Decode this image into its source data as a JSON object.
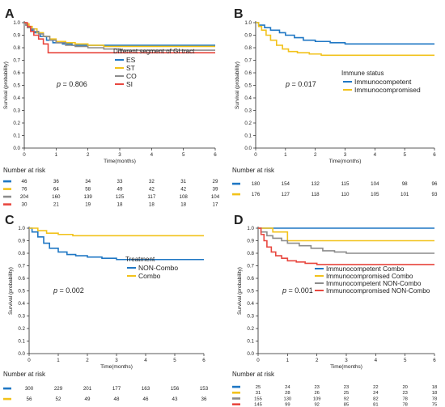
{
  "chart_data": [
    {
      "panel": "A",
      "type": "line",
      "xlabel": "Time(months)",
      "ylabel": "Survival (probability)",
      "xlim": [
        0,
        6
      ],
      "ylim": [
        0,
        1.0
      ],
      "xticks": [
        "0",
        "1",
        "2",
        "3",
        "4",
        "5",
        "6"
      ],
      "yticks": [
        "0.0",
        "0.1",
        "0.2",
        "0.3",
        "0.4",
        "0.5",
        "0.6",
        "0.7",
        "0.8",
        "0.9",
        "1.0"
      ],
      "pvalue_text": "p = 0.806",
      "legend_title": "Different segment of GI tract",
      "series": [
        {
          "name": "ES",
          "color": "#1f77c4",
          "x": [
            0,
            0.05,
            0.1,
            0.2,
            0.3,
            0.5,
            0.7,
            0.9,
            1.2,
            1.5,
            2.0,
            6
          ],
          "y": [
            1.0,
            0.98,
            0.96,
            0.94,
            0.92,
            0.89,
            0.86,
            0.84,
            0.83,
            0.82,
            0.82,
            0.82
          ]
        },
        {
          "name": "ST",
          "color": "#f2c21b",
          "x": [
            0,
            0.05,
            0.15,
            0.25,
            0.4,
            0.6,
            0.8,
            1.0,
            1.3,
            1.6,
            2.0,
            2.5,
            6
          ],
          "y": [
            1.0,
            0.99,
            0.97,
            0.95,
            0.92,
            0.89,
            0.87,
            0.85,
            0.84,
            0.83,
            0.82,
            0.81,
            0.81
          ]
        },
        {
          "name": "CO",
          "color": "#8c8c8c",
          "x": [
            0,
            0.05,
            0.1,
            0.2,
            0.3,
            0.45,
            0.6,
            0.8,
            1.0,
            1.3,
            1.6,
            2.0,
            2.5,
            3.0,
            6
          ],
          "y": [
            1.0,
            0.98,
            0.96,
            0.95,
            0.93,
            0.91,
            0.89,
            0.86,
            0.84,
            0.82,
            0.81,
            0.8,
            0.79,
            0.78,
            0.78
          ]
        },
        {
          "name": "SI",
          "color": "#e8473f",
          "x": [
            0,
            0.1,
            0.2,
            0.3,
            0.45,
            0.6,
            0.75,
            6
          ],
          "y": [
            1.0,
            0.97,
            0.93,
            0.9,
            0.87,
            0.83,
            0.76,
            0.76
          ]
        }
      ],
      "risk": {
        "title": "Number at risk",
        "times": [
          "0",
          "1",
          "2",
          "3",
          "4",
          "5",
          "6"
        ],
        "rows": [
          {
            "color": "#1f77c4",
            "values": [
              "46",
              "36",
              "34",
              "33",
              "32",
              "31",
              "29"
            ]
          },
          {
            "color": "#f2c21b",
            "values": [
              "76",
              "64",
              "58",
              "49",
              "42",
              "42",
              "39"
            ]
          },
          {
            "color": "#8c8c8c",
            "values": [
              "204",
              "160",
              "139",
              "125",
              "117",
              "108",
              "104"
            ]
          },
          {
            "color": "#e8473f",
            "values": [
              "30",
              "21",
              "19",
              "18",
              "18",
              "18",
              "17"
            ]
          }
        ]
      }
    },
    {
      "panel": "B",
      "type": "line",
      "xlabel": "Time(months)",
      "ylabel": "Survival (probability)",
      "xlim": [
        0,
        6
      ],
      "ylim": [
        0,
        1.0
      ],
      "xticks": [
        "0",
        "1",
        "2",
        "3",
        "4",
        "5",
        "6"
      ],
      "yticks": [
        "0.0",
        "0.1",
        "0.2",
        "0.3",
        "0.4",
        "0.5",
        "0.6",
        "0.7",
        "0.8",
        "0.9",
        "1.0"
      ],
      "pvalue_text": "p = 0.017",
      "legend_title": "Immune status",
      "series": [
        {
          "name": "Immunocompetent",
          "color": "#1f77c4",
          "x": [
            0,
            0.1,
            0.3,
            0.5,
            0.8,
            1.0,
            1.3,
            1.6,
            2.0,
            2.5,
            3.0,
            6
          ],
          "y": [
            1.0,
            0.98,
            0.96,
            0.94,
            0.92,
            0.9,
            0.88,
            0.86,
            0.85,
            0.84,
            0.83,
            0.83
          ]
        },
        {
          "name": "Immunocompromised",
          "color": "#f2c21b",
          "x": [
            0,
            0.1,
            0.2,
            0.35,
            0.5,
            0.7,
            0.9,
            1.1,
            1.4,
            1.8,
            2.2,
            6
          ],
          "y": [
            1.0,
            0.97,
            0.94,
            0.9,
            0.86,
            0.82,
            0.79,
            0.77,
            0.76,
            0.75,
            0.74,
            0.74
          ]
        }
      ],
      "risk": {
        "title": "Number at risk",
        "times": [
          "0",
          "1",
          "2",
          "3",
          "4",
          "5",
          "6"
        ],
        "rows": [
          {
            "color": "#1f77c4",
            "values": [
              "180",
              "154",
              "132",
              "115",
              "104",
              "98",
              "96"
            ]
          },
          {
            "color": "#f2c21b",
            "values": [
              "176",
              "127",
              "118",
              "110",
              "105",
              "101",
              "93"
            ]
          }
        ]
      }
    },
    {
      "panel": "C",
      "type": "line",
      "xlabel": "Time(months)",
      "ylabel": "Survival (probability)",
      "xlim": [
        0,
        6
      ],
      "ylim": [
        0,
        1.0
      ],
      "xticks": [
        "0",
        "1",
        "2",
        "3",
        "4",
        "5",
        "6"
      ],
      "yticks": [
        "0.0",
        "0.1",
        "0.2",
        "0.3",
        "0.4",
        "0.5",
        "0.6",
        "0.7",
        "0.8",
        "0.9",
        "1.0"
      ],
      "pvalue_text": "p = 0.002",
      "legend_title": "Treatment",
      "series": [
        {
          "name": "NON-Combo",
          "color": "#1f77c4",
          "x": [
            0,
            0.1,
            0.3,
            0.5,
            0.7,
            1.0,
            1.3,
            1.6,
            2.0,
            2.5,
            3.0,
            6
          ],
          "y": [
            1.0,
            0.97,
            0.93,
            0.88,
            0.84,
            0.81,
            0.79,
            0.78,
            0.77,
            0.76,
            0.75,
            0.75
          ]
        },
        {
          "name": "Combo",
          "color": "#f2c21b",
          "x": [
            0,
            0.3,
            0.6,
            1.0,
            1.5,
            6
          ],
          "y": [
            1.0,
            0.98,
            0.96,
            0.95,
            0.94,
            0.94
          ]
        }
      ],
      "risk": {
        "title": "Number at risk",
        "times": [
          "0",
          "1",
          "2",
          "3",
          "4",
          "5",
          "6"
        ],
        "rows": [
          {
            "color": "#1f77c4",
            "values": [
              "300",
              "229",
              "201",
              "177",
              "163",
              "156",
              "153"
            ]
          },
          {
            "color": "#f2c21b",
            "values": [
              "56",
              "52",
              "49",
              "48",
              "46",
              "43",
              "36"
            ]
          }
        ]
      }
    },
    {
      "panel": "D",
      "type": "line",
      "xlabel": "Time(months)",
      "ylabel": "Survival (probability)",
      "xlim": [
        0,
        6
      ],
      "ylim": [
        0,
        1.0
      ],
      "xticks": [
        "0",
        "1",
        "2",
        "3",
        "4",
        "5",
        "6"
      ],
      "yticks": [
        "0.0",
        "0.1",
        "0.2",
        "0.3",
        "0.4",
        "0.5",
        "0.6",
        "0.7",
        "0.8",
        "0.9",
        "1.0"
      ],
      "pvalue_text": "p = 0.001",
      "legend_title": "",
      "series": [
        {
          "name": "Immunocompetent Combo",
          "color": "#1f77c4",
          "x": [
            0,
            6
          ],
          "y": [
            1.0,
            1.0
          ]
        },
        {
          "name": "Immunocompromised Combo",
          "color": "#f2c21b",
          "x": [
            0,
            0.5,
            1.0,
            6
          ],
          "y": [
            1.0,
            0.97,
            0.9,
            0.9
          ]
        },
        {
          "name": "Immunocompetent NON-Combo",
          "color": "#8c8c8c",
          "x": [
            0,
            0.1,
            0.3,
            0.5,
            0.8,
            1.0,
            1.4,
            1.8,
            2.2,
            2.6,
            3.0,
            6
          ],
          "y": [
            1.0,
            0.97,
            0.94,
            0.92,
            0.9,
            0.88,
            0.86,
            0.84,
            0.82,
            0.81,
            0.8,
            0.8
          ]
        },
        {
          "name": "Immunocompromised NON-Combo",
          "color": "#e8473f",
          "x": [
            0,
            0.1,
            0.2,
            0.3,
            0.45,
            0.6,
            0.8,
            1.0,
            1.3,
            1.6,
            2.0,
            6
          ],
          "y": [
            1.0,
            0.95,
            0.9,
            0.85,
            0.81,
            0.78,
            0.76,
            0.74,
            0.73,
            0.72,
            0.71,
            0.71
          ]
        }
      ],
      "risk": {
        "title": "Number at risk",
        "times": [
          "0",
          "1",
          "2",
          "3",
          "4",
          "5",
          "6"
        ],
        "rows": [
          {
            "color": "#1f77c4",
            "values": [
              "25",
              "24",
              "23",
              "23",
              "22",
              "20",
              "18"
            ]
          },
          {
            "color": "#f2c21b",
            "values": [
              "31",
              "28",
              "26",
              "25",
              "24",
              "23",
              "18"
            ]
          },
          {
            "color": "#8c8c8c",
            "values": [
              "155",
              "130",
              "109",
              "92",
              "82",
              "78",
              "78"
            ]
          },
          {
            "color": "#e8473f",
            "values": [
              "145",
              "99",
              "92",
              "85",
              "81",
              "78",
              "75"
            ]
          }
        ]
      }
    }
  ]
}
